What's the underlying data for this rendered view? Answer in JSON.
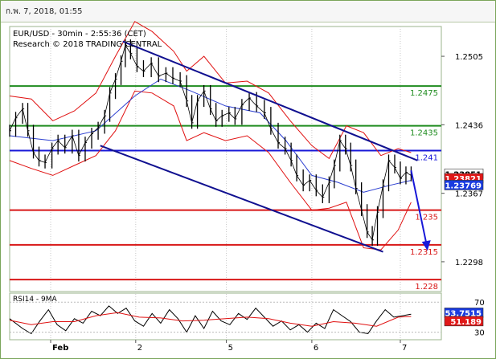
{
  "header": {
    "timestamp": "ก.พ. 7, 2018, 01:55"
  },
  "chart_data": {
    "type": "line",
    "main_panel": {
      "title": "EUR/USD - 30min - 2:55:36 (CET)",
      "credit": "Research © 2018 TRADING CENTRAL",
      "y_ticks": [
        "1.2505",
        "1.2436",
        "1.2367",
        "1.2298"
      ],
      "levels": [
        {
          "label": "1.2475",
          "value": 1.2475,
          "color": "#1f8c1f"
        },
        {
          "label": "1.2435",
          "value": 1.2435,
          "color": "#1f8c1f"
        },
        {
          "label": "1.241",
          "value": 1.241,
          "color": "#1818d8"
        },
        {
          "label": "1.235",
          "value": 1.235,
          "color": "#d81818"
        },
        {
          "label": "1.2315",
          "value": 1.2315,
          "color": "#d81818"
        },
        {
          "label": "1.228",
          "value": 1.228,
          "color": "#d81818"
        }
      ],
      "price_tags": [
        {
          "label": "1.23851",
          "value": 1.23851,
          "bg": "#ffffff",
          "fg": "#000000"
        },
        {
          "label": "1.23821",
          "value": 1.23821,
          "bg": "#e01818",
          "fg": "#ffffff"
        },
        {
          "label": "1.23769",
          "value": 1.23769,
          "bg": "#1a3ce0",
          "fg": "#ffffff"
        }
      ],
      "channel": [
        {
          "points": [
            [
              0.262,
              1.252
            ],
            [
              0.945,
              1.24
            ]
          ]
        },
        {
          "points": [
            [
              0.21,
              1.2415
            ],
            [
              0.865,
              1.2308
            ]
          ]
        }
      ],
      "arrow": {
        "from": [
          0.93,
          1.239
        ],
        "to": [
          0.966,
          1.231
        ],
        "color": "#1818d8"
      },
      "price": [
        [
          0.0,
          1.243
        ],
        [
          0.014,
          1.2443
        ],
        [
          0.03,
          1.2452
        ],
        [
          0.042,
          1.243
        ],
        [
          0.055,
          1.2408
        ],
        [
          0.068,
          1.24
        ],
        [
          0.082,
          1.2398
        ],
        [
          0.098,
          1.2412
        ],
        [
          0.112,
          1.242
        ],
        [
          0.128,
          1.2413
        ],
        [
          0.145,
          1.2425
        ],
        [
          0.16,
          1.2405
        ],
        [
          0.175,
          1.2418
        ],
        [
          0.19,
          1.2427
        ],
        [
          0.205,
          1.2433
        ],
        [
          0.22,
          1.2445
        ],
        [
          0.232,
          1.2468
        ],
        [
          0.245,
          1.2482
        ],
        [
          0.258,
          1.25
        ],
        [
          0.268,
          1.2516
        ],
        [
          0.28,
          1.2508
        ],
        [
          0.295,
          1.2495
        ],
        [
          0.31,
          1.249
        ],
        [
          0.328,
          1.2498
        ],
        [
          0.345,
          1.2485
        ],
        [
          0.362,
          1.2488
        ],
        [
          0.378,
          1.2483
        ],
        [
          0.395,
          1.248
        ],
        [
          0.41,
          1.246
        ],
        [
          0.422,
          1.2438
        ],
        [
          0.435,
          1.246
        ],
        [
          0.45,
          1.247
        ],
        [
          0.465,
          1.2452
        ],
        [
          0.478,
          1.244
        ],
        [
          0.492,
          1.2445
        ],
        [
          0.508,
          1.2448
        ],
        [
          0.522,
          1.2442
        ],
        [
          0.538,
          1.2456
        ],
        [
          0.555,
          1.2463
        ],
        [
          0.572,
          1.2455
        ],
        [
          0.59,
          1.2448
        ],
        [
          0.605,
          1.2432
        ],
        [
          0.622,
          1.2418
        ],
        [
          0.638,
          1.2412
        ],
        [
          0.652,
          1.24
        ],
        [
          0.665,
          1.2385
        ],
        [
          0.68,
          1.2375
        ],
        [
          0.695,
          1.238
        ],
        [
          0.71,
          1.237
        ],
        [
          0.725,
          1.2363
        ],
        [
          0.74,
          1.2378
        ],
        [
          0.752,
          1.2395
        ],
        [
          0.765,
          1.242
        ],
        [
          0.778,
          1.2412
        ],
        [
          0.79,
          1.2395
        ],
        [
          0.802,
          1.2372
        ],
        [
          0.815,
          1.235
        ],
        [
          0.828,
          1.2328
        ],
        [
          0.84,
          1.232
        ],
        [
          0.852,
          1.2348
        ],
        [
          0.865,
          1.2375
        ],
        [
          0.878,
          1.24
        ],
        [
          0.892,
          1.2393
        ],
        [
          0.905,
          1.2382
        ],
        [
          0.918,
          1.2388
        ],
        [
          0.93,
          1.2385
        ]
      ],
      "bollinger_upper": [
        [
          0.0,
          1.2465
        ],
        [
          0.05,
          1.2462
        ],
        [
          0.1,
          1.244
        ],
        [
          0.15,
          1.245
        ],
        [
          0.2,
          1.2468
        ],
        [
          0.245,
          1.2505
        ],
        [
          0.29,
          1.254
        ],
        [
          0.33,
          1.253
        ],
        [
          0.38,
          1.251
        ],
        [
          0.41,
          1.249
        ],
        [
          0.45,
          1.2505
        ],
        [
          0.5,
          1.2478
        ],
        [
          0.55,
          1.248
        ],
        [
          0.6,
          1.2468
        ],
        [
          0.65,
          1.244
        ],
        [
          0.7,
          1.2415
        ],
        [
          0.74,
          1.2402
        ],
        [
          0.78,
          1.2435
        ],
        [
          0.82,
          1.2428
        ],
        [
          0.86,
          1.2405
        ],
        [
          0.9,
          1.2412
        ],
        [
          0.93,
          1.2408
        ]
      ],
      "bollinger_lower": [
        [
          0.0,
          1.24
        ],
        [
          0.05,
          1.2392
        ],
        [
          0.1,
          1.2385
        ],
        [
          0.15,
          1.2395
        ],
        [
          0.2,
          1.2405
        ],
        [
          0.245,
          1.243
        ],
        [
          0.29,
          1.247
        ],
        [
          0.33,
          1.2468
        ],
        [
          0.38,
          1.2455
        ],
        [
          0.41,
          1.242
        ],
        [
          0.45,
          1.2428
        ],
        [
          0.5,
          1.242
        ],
        [
          0.55,
          1.2425
        ],
        [
          0.6,
          1.2408
        ],
        [
          0.65,
          1.2378
        ],
        [
          0.7,
          1.235
        ],
        [
          0.74,
          1.2352
        ],
        [
          0.78,
          1.2358
        ],
        [
          0.82,
          1.2312
        ],
        [
          0.86,
          1.231
        ],
        [
          0.9,
          1.233
        ],
        [
          0.93,
          1.2358
        ]
      ],
      "moving_average": [
        [
          0.0,
          1.2425
        ],
        [
          0.1,
          1.242
        ],
        [
          0.2,
          1.243
        ],
        [
          0.29,
          1.2465
        ],
        [
          0.35,
          1.2482
        ],
        [
          0.42,
          1.247
        ],
        [
          0.5,
          1.2455
        ],
        [
          0.58,
          1.2448
        ],
        [
          0.64,
          1.242
        ],
        [
          0.7,
          1.2385
        ],
        [
          0.76,
          1.2378
        ],
        [
          0.82,
          1.2368
        ],
        [
          0.88,
          1.2375
        ],
        [
          0.93,
          1.238
        ]
      ],
      "ylim": [
        1.2268,
        1.2535
      ]
    },
    "rsi_panel": {
      "title": "RSI14 - 9MA",
      "y_ticks": [
        "70",
        "30"
      ],
      "tags": [
        {
          "label": "53.7515",
          "value": 53.75,
          "bg": "#1a3ce0",
          "fg": "#ffffff"
        },
        {
          "label": "51.189",
          "value": 51.19,
          "bg": "#e01818",
          "fg": "#ffffff"
        }
      ],
      "rsi": [
        [
          0.0,
          48
        ],
        [
          0.03,
          35
        ],
        [
          0.05,
          28
        ],
        [
          0.07,
          45
        ],
        [
          0.09,
          60
        ],
        [
          0.11,
          40
        ],
        [
          0.13,
          32
        ],
        [
          0.15,
          48
        ],
        [
          0.17,
          42
        ],
        [
          0.19,
          58
        ],
        [
          0.21,
          52
        ],
        [
          0.23,
          65
        ],
        [
          0.25,
          55
        ],
        [
          0.27,
          62
        ],
        [
          0.29,
          45
        ],
        [
          0.31,
          38
        ],
        [
          0.33,
          55
        ],
        [
          0.35,
          42
        ],
        [
          0.37,
          60
        ],
        [
          0.39,
          48
        ],
        [
          0.41,
          30
        ],
        [
          0.43,
          52
        ],
        [
          0.45,
          35
        ],
        [
          0.47,
          58
        ],
        [
          0.49,
          45
        ],
        [
          0.51,
          40
        ],
        [
          0.53,
          55
        ],
        [
          0.55,
          47
        ],
        [
          0.57,
          62
        ],
        [
          0.59,
          50
        ],
        [
          0.61,
          38
        ],
        [
          0.63,
          45
        ],
        [
          0.65,
          33
        ],
        [
          0.67,
          40
        ],
        [
          0.69,
          30
        ],
        [
          0.71,
          42
        ],
        [
          0.73,
          35
        ],
        [
          0.75,
          60
        ],
        [
          0.77,
          52
        ],
        [
          0.79,
          44
        ],
        [
          0.81,
          30
        ],
        [
          0.83,
          28
        ],
        [
          0.85,
          45
        ],
        [
          0.87,
          60
        ],
        [
          0.89,
          50
        ],
        [
          0.91,
          52
        ],
        [
          0.93,
          54
        ]
      ],
      "rsi_ma": [
        [
          0.0,
          46
        ],
        [
          0.05,
          40
        ],
        [
          0.1,
          44
        ],
        [
          0.15,
          44
        ],
        [
          0.2,
          52
        ],
        [
          0.25,
          56
        ],
        [
          0.3,
          50
        ],
        [
          0.35,
          49
        ],
        [
          0.4,
          45
        ],
        [
          0.45,
          46
        ],
        [
          0.5,
          48
        ],
        [
          0.55,
          50
        ],
        [
          0.6,
          48
        ],
        [
          0.65,
          42
        ],
        [
          0.7,
          38
        ],
        [
          0.75,
          44
        ],
        [
          0.8,
          42
        ],
        [
          0.85,
          38
        ],
        [
          0.9,
          50
        ],
        [
          0.93,
          51
        ]
      ],
      "ylim": [
        20,
        82
      ]
    },
    "x_labels": [
      {
        "label": "Feb",
        "pos": 0.095
      },
      {
        "label": "2",
        "pos": 0.292
      },
      {
        "label": "5",
        "pos": 0.502
      },
      {
        "label": "6",
        "pos": 0.7
      },
      {
        "label": "7",
        "pos": 0.905
      }
    ]
  }
}
